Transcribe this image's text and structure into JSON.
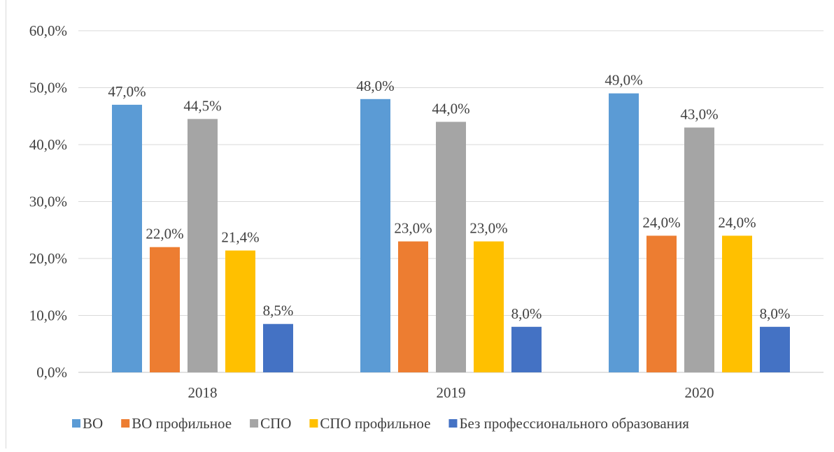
{
  "chart_data": {
    "type": "bar",
    "categories": [
      "2018",
      "2019",
      "2020"
    ],
    "series": [
      {
        "name": "ВО",
        "color": "#5b9bd5",
        "values": [
          47.0,
          48.0,
          49.0
        ],
        "labels": [
          "47,0%",
          "48,0%",
          "49,0%"
        ]
      },
      {
        "name": "ВО профильное",
        "color": "#ed7d31",
        "values": [
          22.0,
          23.0,
          24.0
        ],
        "labels": [
          "22,0%",
          "23,0%",
          "24,0%"
        ]
      },
      {
        "name": "СПО",
        "color": "#a5a5a5",
        "values": [
          44.5,
          44.0,
          43.0
        ],
        "labels": [
          "44,5%",
          "44,0%",
          "43,0%"
        ]
      },
      {
        "name": "СПО профильное",
        "color": "#ffc000",
        "values": [
          21.4,
          23.0,
          24.0
        ],
        "labels": [
          "21,4%",
          "23,0%",
          "24,0%"
        ]
      },
      {
        "name": "Без профессионального образования",
        "color": "#4472c4",
        "values": [
          8.5,
          8.0,
          8.0
        ],
        "labels": [
          "8,5%",
          "8,0%",
          "8,0%"
        ]
      }
    ],
    "ylim": [
      0,
      60
    ],
    "yticks": [
      0,
      10,
      20,
      30,
      40,
      50,
      60
    ],
    "ytick_labels": [
      "0,0%",
      "10,0%",
      "20,0%",
      "30,0%",
      "40,0%",
      "50,0%",
      "60,0%"
    ],
    "grid": true,
    "legend_position": "bottom"
  }
}
